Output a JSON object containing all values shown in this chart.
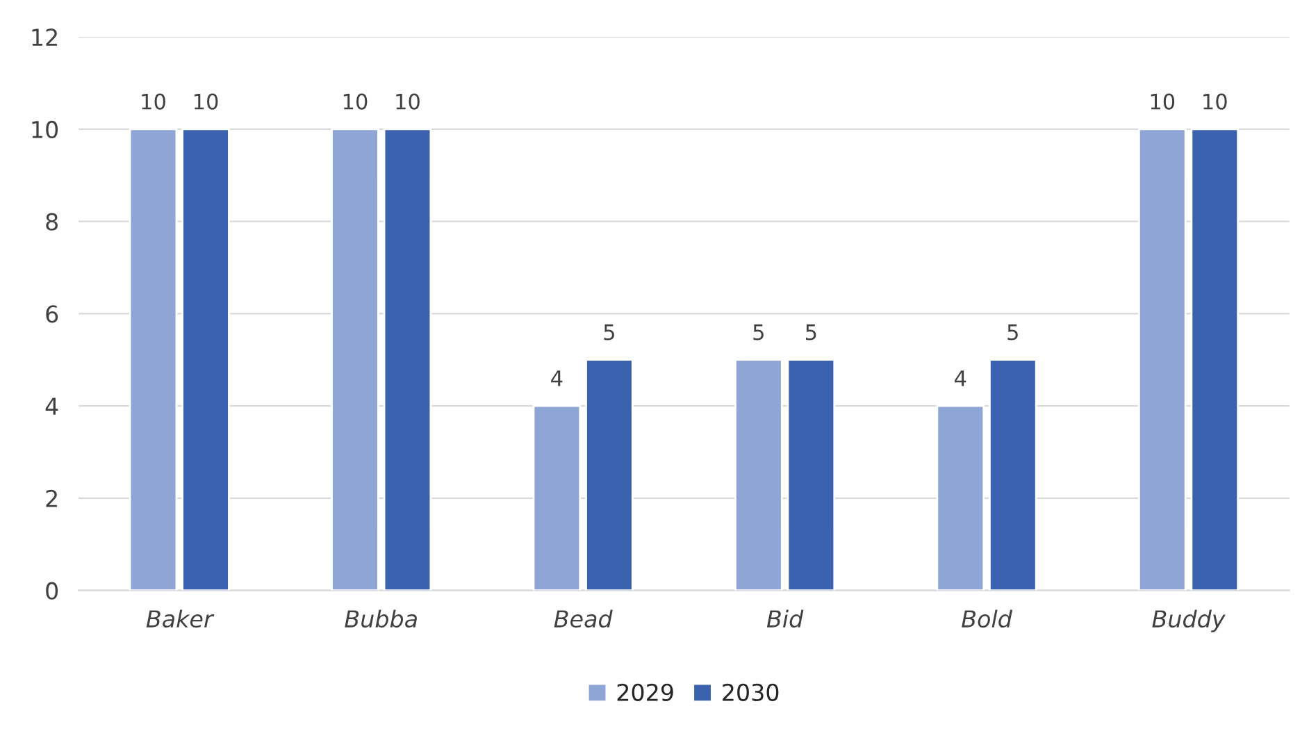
{
  "chart_data": {
    "type": "bar",
    "categories": [
      "Baker",
      "Bubba",
      "Bead",
      "Bid",
      "Bold",
      "Buddy"
    ],
    "series": [
      {
        "name": "2029",
        "color": "#8ea5d6",
        "values": [
          10,
          10,
          4,
          5,
          4,
          10
        ]
      },
      {
        "name": "2030",
        "color": "#3b62ae",
        "values": [
          10,
          10,
          5,
          5,
          5,
          10
        ]
      }
    ],
    "ylim": [
      0,
      12
    ],
    "yticks": [
      0,
      2,
      4,
      6,
      8,
      10,
      12
    ],
    "grid": "y",
    "legend": "bottom",
    "data_labels": true
  }
}
